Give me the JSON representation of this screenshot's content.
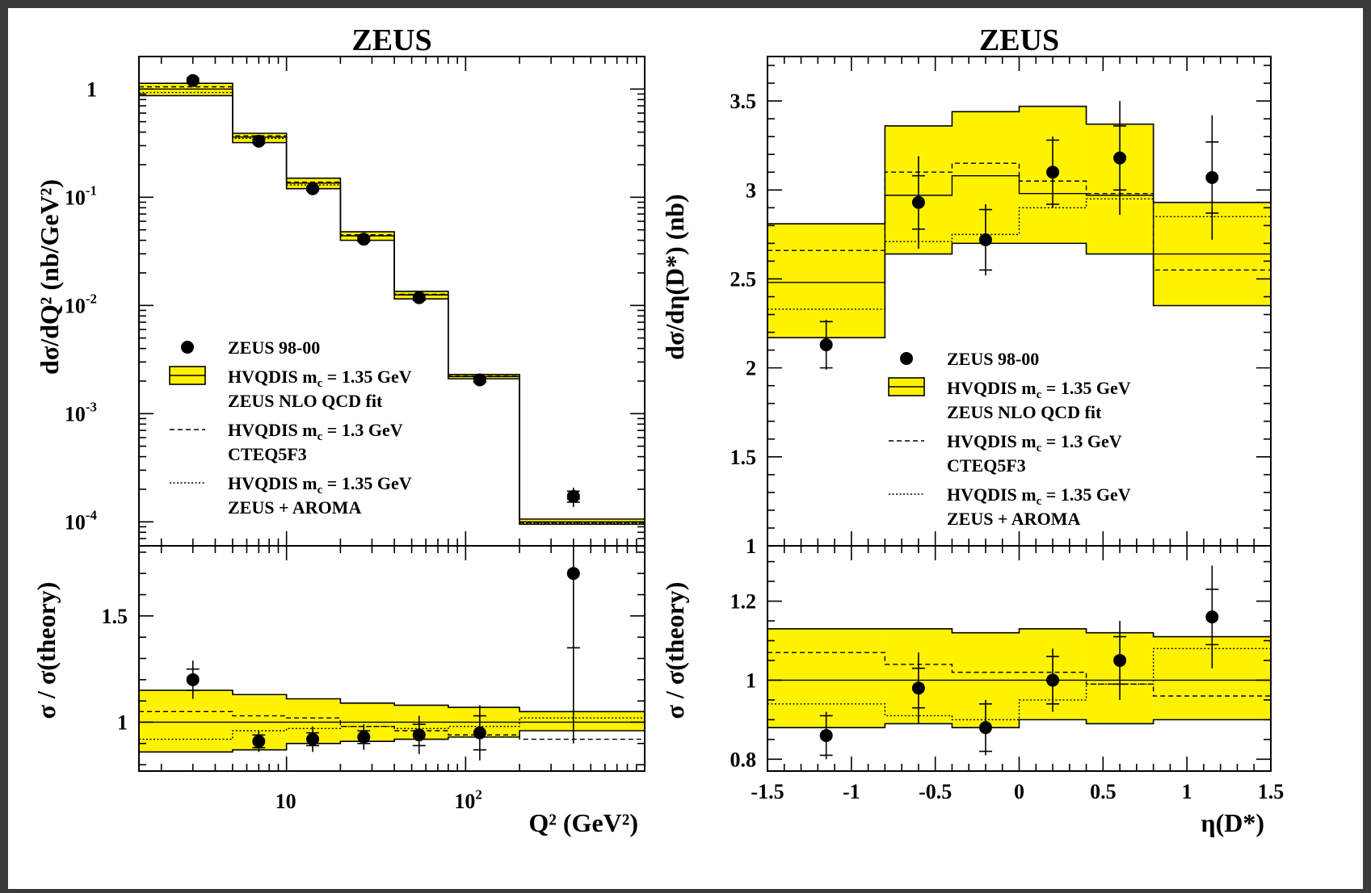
{
  "colors": {
    "band": "#fff200",
    "line": "#000000",
    "background": "#ffffff",
    "border": "#3a3a3a"
  },
  "chart_data": [
    {
      "type": "line",
      "title": "ZEUS",
      "ylabel": "dσ/dQ² (nb/GeV²)",
      "xlabel": "Q² (GeV²)",
      "x_scale": "log",
      "y_scale": "log",
      "xlim": [
        1.5,
        1000
      ],
      "ylim": [
        6e-05,
        2
      ],
      "x_ticks": [
        {
          "v": 10,
          "base": "10",
          "exp": ""
        },
        {
          "v": 100,
          "base": "10",
          "exp": "2"
        }
      ],
      "y_ticks": [
        {
          "v": 1,
          "base": "1",
          "exp": ""
        },
        {
          "v": 0.1,
          "base": "10",
          "exp": "-1"
        },
        {
          "v": 0.01,
          "base": "10",
          "exp": "-2"
        },
        {
          "v": 0.001,
          "base": "10",
          "exp": "-3"
        },
        {
          "v": 0.0001,
          "base": "10",
          "exp": "-4"
        }
      ],
      "bins": [
        [
          1.5,
          5
        ],
        [
          5,
          10
        ],
        [
          10,
          20
        ],
        [
          20,
          40
        ],
        [
          40,
          80
        ],
        [
          80,
          200
        ],
        [
          200,
          1000
        ]
      ],
      "data": {
        "name": "ZEUS 98-00",
        "x": [
          3,
          7,
          14,
          27,
          55,
          120,
          400
        ],
        "y": [
          1.2,
          0.33,
          0.12,
          0.041,
          0.0118,
          0.00205,
          0.000172
        ],
        "err_stat": [
          0.06,
          0.015,
          0.005,
          0.002,
          0.0007,
          0.0001,
          2e-05
        ],
        "err_tot": [
          0.08,
          0.02,
          0.007,
          0.003,
          0.001,
          0.00015,
          3.5e-05
        ]
      },
      "band": {
        "name": "HVQDIS m_c = 1.35 GeV ZEUS NLO QCD fit",
        "central": [
          1.0,
          0.36,
          0.135,
          0.044,
          0.0125,
          0.0022,
          0.0001
        ],
        "low": [
          0.87,
          0.32,
          0.12,
          0.04,
          0.0115,
          0.0021,
          9.5e-05
        ],
        "high": [
          1.13,
          0.39,
          0.15,
          0.048,
          0.0135,
          0.0023,
          0.000106
        ]
      },
      "dashed": {
        "name": "HVQDIS m_c = 1.3 GeV CTEQ5F3",
        "values": [
          1.05,
          0.37,
          0.138,
          0.045,
          0.0127,
          0.00222,
          9.85e-05
        ]
      },
      "dotted": {
        "name": "HVQDIS m_c = 1.35 GeV ZEUS + AROMA",
        "values": [
          0.93,
          0.35,
          0.13,
          0.044,
          0.0126,
          0.00221,
          9.75e-05
        ]
      },
      "legend": {
        "placement": "lower-left",
        "entries": [
          {
            "marker": "point",
            "lines": [
              {
                "text": "ZEUS 98-00",
                "sub": "",
                "suffix": ""
              }
            ]
          },
          {
            "marker": "band",
            "lines": [
              {
                "text": "HVQDIS m",
                "sub": "c",
                "suffix": " = 1.35 GeV"
              },
              {
                "text": "ZEUS NLO QCD fit",
                "sub": "",
                "suffix": ""
              }
            ]
          },
          {
            "marker": "dashed",
            "lines": [
              {
                "text": "HVQDIS m",
                "sub": "c",
                "suffix": " = 1.3 GeV"
              },
              {
                "text": "CTEQ5F3",
                "sub": "",
                "suffix": ""
              }
            ]
          },
          {
            "marker": "dotted",
            "lines": [
              {
                "text": "HVQDIS m",
                "sub": "c",
                "suffix": " = 1.35 GeV"
              },
              {
                "text": "ZEUS + AROMA",
                "sub": "",
                "suffix": ""
              }
            ]
          }
        ]
      },
      "ratio": {
        "ylabel": "σ / σ(theory)",
        "ylim": [
          0.77,
          1.83
        ],
        "y_ticks": [
          {
            "v": 1,
            "label": "1"
          },
          {
            "v": 1.5,
            "label": "1.5"
          }
        ],
        "data": {
          "y": [
            1.2,
            0.91,
            0.92,
            0.93,
            0.94,
            0.95,
            1.7
          ],
          "err_stat": [
            0.05,
            0.03,
            0.03,
            0.03,
            0.05,
            0.08,
            0.35
          ],
          "err_tot": [
            0.09,
            0.05,
            0.06,
            0.06,
            0.09,
            0.13,
            0.8
          ]
        },
        "band_low": [
          0.86,
          0.87,
          0.9,
          0.91,
          0.92,
          0.93,
          0.96
        ],
        "band_high": [
          1.15,
          1.13,
          1.11,
          1.09,
          1.08,
          1.07,
          1.05
        ],
        "dashed": [
          1.05,
          1.03,
          1.02,
          0.98,
          0.96,
          0.94,
          0.92
        ],
        "dotted": [
          0.92,
          0.96,
          0.97,
          0.98,
          0.97,
          0.98,
          1.02
        ]
      }
    },
    {
      "type": "line",
      "title": "ZEUS",
      "ylabel": "dσ/dη(D*) (nb)",
      "xlabel": "η(D*)",
      "x_scale": "linear",
      "y_scale": "linear",
      "xlim": [
        -1.5,
        1.5
      ],
      "ylim": [
        1,
        3.75
      ],
      "x_ticks": [
        {
          "v": -1.5,
          "label": "-1.5"
        },
        {
          "v": -1,
          "label": "-1"
        },
        {
          "v": -0.5,
          "label": "-0.5"
        },
        {
          "v": 0,
          "label": "0"
        },
        {
          "v": 0.5,
          "label": "0.5"
        },
        {
          "v": 1,
          "label": "1"
        },
        {
          "v": 1.5,
          "label": "1.5"
        }
      ],
      "y_ticks": [
        {
          "v": 1,
          "label": "1"
        },
        {
          "v": 1.5,
          "label": "1.5"
        },
        {
          "v": 2,
          "label": "2"
        },
        {
          "v": 2.5,
          "label": "2.5"
        },
        {
          "v": 3,
          "label": "3"
        },
        {
          "v": 3.5,
          "label": "3.5"
        }
      ],
      "bins": [
        [
          -1.5,
          -0.8
        ],
        [
          -0.8,
          -0.4
        ],
        [
          -0.4,
          0
        ],
        [
          0,
          0.4
        ],
        [
          0.4,
          0.8
        ],
        [
          0.8,
          1.5
        ]
      ],
      "data": {
        "name": "ZEUS 98-00",
        "x": [
          -1.15,
          -0.6,
          -0.2,
          0.2,
          0.6,
          1.15
        ],
        "y": [
          2.13,
          2.93,
          2.72,
          3.1,
          3.18,
          3.07
        ],
        "err_stat": [
          0.13,
          0.15,
          0.17,
          0.18,
          0.18,
          0.2
        ],
        "err_tot": [
          0.14,
          0.26,
          0.2,
          0.2,
          0.32,
          0.35
        ]
      },
      "band": {
        "name": "HVQDIS m_c = 1.35 GeV ZEUS NLO QCD fit",
        "central": [
          2.48,
          2.97,
          3.08,
          2.98,
          2.97,
          2.64
        ],
        "low": [
          2.17,
          2.64,
          2.7,
          2.7,
          2.64,
          2.35
        ],
        "high": [
          2.81,
          3.36,
          3.44,
          3.47,
          3.37,
          2.93
        ]
      },
      "dashed": {
        "name": "HVQDIS m_c = 1.3 GeV CTEQ5F3",
        "values": [
          2.66,
          3.1,
          3.15,
          3.05,
          2.98,
          2.55
        ]
      },
      "dotted": {
        "name": "HVQDIS m_c = 1.35 GeV ZEUS + AROMA",
        "values": [
          2.33,
          2.71,
          2.75,
          2.9,
          2.95,
          2.85
        ]
      },
      "legend": {
        "placement": "lower-center",
        "entries": [
          {
            "marker": "point",
            "lines": [
              {
                "text": "ZEUS 98-00",
                "sub": "",
                "suffix": ""
              }
            ]
          },
          {
            "marker": "band",
            "lines": [
              {
                "text": "HVQDIS m",
                "sub": "c",
                "suffix": " = 1.35 GeV"
              },
              {
                "text": "ZEUS NLO QCD fit",
                "sub": "",
                "suffix": ""
              }
            ]
          },
          {
            "marker": "dashed",
            "lines": [
              {
                "text": "HVQDIS m",
                "sub": "c",
                "suffix": " = 1.3 GeV"
              },
              {
                "text": "CTEQ5F3",
                "sub": "",
                "suffix": ""
              }
            ]
          },
          {
            "marker": "dotted",
            "lines": [
              {
                "text": "HVQDIS m",
                "sub": "c",
                "suffix": " = 1.35 GeV"
              },
              {
                "text": "ZEUS + AROMA",
                "sub": "",
                "suffix": ""
              }
            ]
          }
        ]
      },
      "ratio": {
        "ylabel": "σ / σ(theory)",
        "ylim": [
          0.77,
          1.34
        ],
        "y_ticks": [
          {
            "v": 0.8,
            "label": "0.8"
          },
          {
            "v": 1,
            "label": "1"
          },
          {
            "v": 1.2,
            "label": "1.2"
          }
        ],
        "data": {
          "y": [
            0.86,
            0.98,
            0.88,
            1.0,
            1.05,
            1.16
          ],
          "err_stat": [
            0.05,
            0.05,
            0.06,
            0.06,
            0.06,
            0.07
          ],
          "err_tot": [
            0.06,
            0.09,
            0.07,
            0.08,
            0.1,
            0.13
          ]
        },
        "band_low": [
          0.88,
          0.89,
          0.88,
          0.9,
          0.89,
          0.9
        ],
        "band_high": [
          1.13,
          1.13,
          1.12,
          1.13,
          1.12,
          1.11
        ],
        "dashed": [
          1.07,
          1.04,
          1.02,
          1.02,
          0.99,
          0.96
        ],
        "dotted": [
          0.94,
          0.91,
          0.9,
          0.95,
          0.99,
          1.08
        ]
      }
    }
  ]
}
